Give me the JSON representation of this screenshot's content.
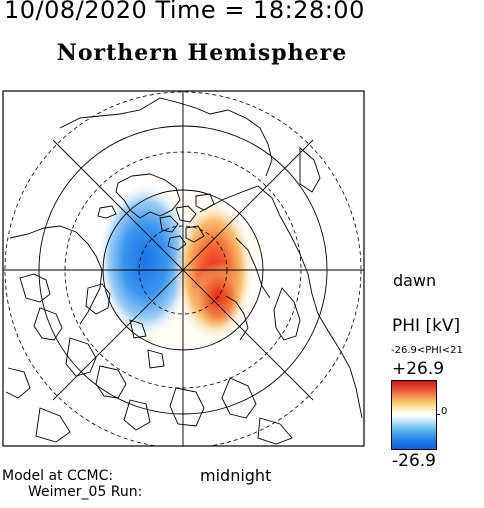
{
  "header": {
    "datetime": "10/08/2020 Time = 18:28:00",
    "title": "Northern Hemisphere"
  },
  "map": {
    "orientation_labels": {
      "right": "dawn",
      "bottom": "midnight"
    },
    "potential_pattern": {
      "dusk_cell_color": "#1a73e8",
      "dawn_cell_color": "#e8281a",
      "dawn_peak_color": "#f5b041"
    },
    "grid": {
      "latitude_circles": "dashed and solid concentric circles",
      "meridians": "8 radial lines at 45 degree spacing"
    }
  },
  "colorbar": {
    "title": "PHI [kV]",
    "range_text": "-26.9<PHI<21",
    "max_label": "+26.9",
    "min_label": "-26.9",
    "mid_label": "0",
    "colors": [
      "#cc1a1a",
      "#f8c060",
      "#ffffff",
      "#60b8f0",
      "#1a5ad8"
    ]
  },
  "footer": {
    "line1": "Model at CCMC:",
    "line2": "Weimer_05 Run:"
  }
}
